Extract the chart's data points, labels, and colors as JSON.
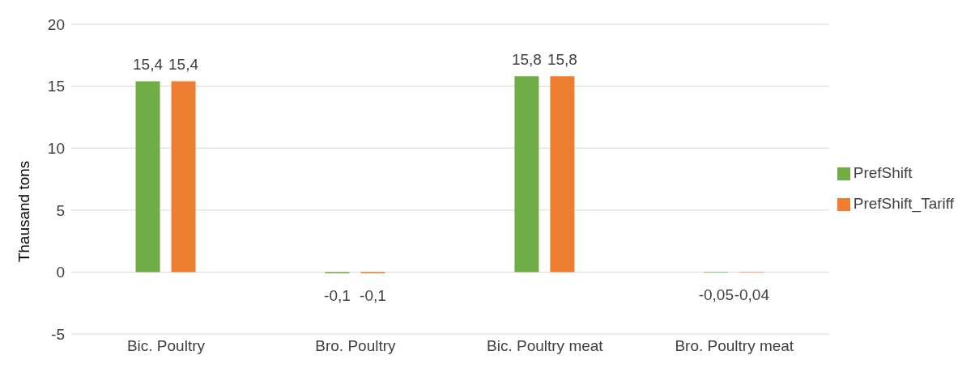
{
  "chart_data": {
    "type": "bar",
    "ylabel": "Thausand tons",
    "categories": [
      "Bic. Poultry",
      "Bro. Poultry",
      "Bic. Poultry meat",
      "Bro. Poultry meat"
    ],
    "series": [
      {
        "name": "PrefShift",
        "color": "#70ad47",
        "values": [
          15.4,
          -0.1,
          15.8,
          -0.05
        ],
        "value_labels": [
          "15,4",
          "-0,1",
          "15,8",
          "-0,05"
        ]
      },
      {
        "name": "PrefShift_Tariff",
        "color": "#ed7d31",
        "values": [
          15.4,
          -0.1,
          15.8,
          -0.04
        ],
        "value_labels": [
          "15,4",
          "-0,1",
          "15,8",
          "-0,04"
        ]
      }
    ],
    "ylim": [
      -5,
      20
    ],
    "yticks": [
      -5,
      0,
      5,
      10,
      15,
      20
    ],
    "grid": "y",
    "legend": "right"
  }
}
